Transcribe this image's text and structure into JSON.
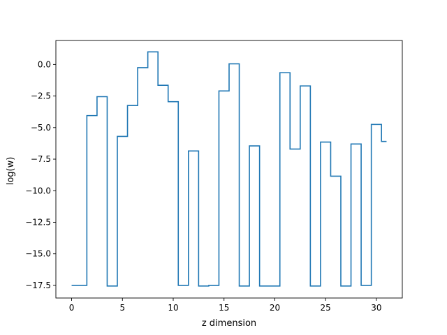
{
  "chart_data": {
    "type": "line",
    "drawstyle": "steps-mid",
    "title": "",
    "xlabel": "z dimension",
    "ylabel": "log(w)",
    "xlim": [
      -1.55,
      32.55
    ],
    "ylim": [
      -18.5,
      1.9
    ],
    "grid": false,
    "legend": "none",
    "xticks": [
      0,
      5,
      10,
      15,
      20,
      25,
      30
    ],
    "xtick_labels": [
      "0",
      "5",
      "10",
      "15",
      "20",
      "25",
      "30"
    ],
    "yticks": [
      -17.5,
      -15.0,
      -12.5,
      -10.0,
      -7.5,
      -5.0,
      -2.5,
      0.0
    ],
    "ytick_labels": [
      "−17.5",
      "−15.0",
      "−12.5",
      "−10.0",
      "−7.5",
      "−5.0",
      "−2.5",
      "0.0"
    ],
    "line_color": "#1f77b4",
    "series": [
      {
        "x": [
          0,
          1,
          2,
          3,
          4,
          5,
          6,
          7,
          8,
          9,
          10,
          11,
          12,
          13,
          14,
          15,
          16,
          17,
          18,
          19,
          20,
          21,
          22,
          23,
          24,
          25,
          26,
          27,
          28,
          29,
          30,
          31
        ],
        "values": [
          -17.5,
          -17.5,
          -4.05,
          -2.55,
          -17.55,
          -5.7,
          -3.25,
          -0.25,
          1.0,
          -1.65,
          -2.95,
          -17.5,
          -6.85,
          -17.55,
          -17.5,
          -2.1,
          0.05,
          -17.55,
          -6.45,
          -17.55,
          -17.55,
          -0.65,
          -6.7,
          -1.7,
          -17.55,
          -6.15,
          -8.85,
          -17.55,
          -6.3,
          -17.5,
          -4.75,
          -6.1
        ]
      }
    ]
  }
}
